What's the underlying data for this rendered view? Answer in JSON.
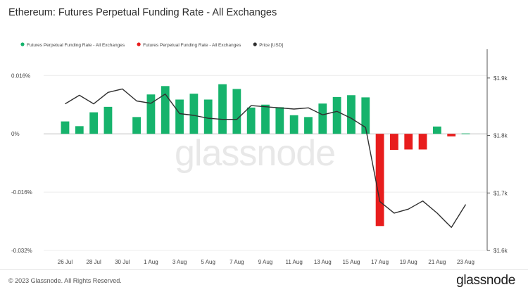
{
  "header": {
    "title": "Ethereum: Futures Perpetual Funding Rate - All Exchanges"
  },
  "watermark": "glassnode",
  "footer": {
    "copyright": "© 2023 Glassnode. All Rights Reserved.",
    "brand": "glassnode"
  },
  "colors": {
    "positive": "#16b36c",
    "negative": "#e81d1d",
    "price": "#2f2f2f",
    "grid": "#ececec"
  },
  "chart_data": {
    "type": "bar",
    "title": "Ethereum: Futures Perpetual Funding Rate - All Exchanges",
    "legend": [
      {
        "label": "Futures Perpetual Funding Rate - All Exchanges",
        "color": "#16b36c"
      },
      {
        "label": "Futures Perpetual Funding Rate - All Exchanges",
        "color": "#e81d1d"
      },
      {
        "label": "Price [USD]",
        "color": "#2f2f2f"
      }
    ],
    "legend_placement": "top-left",
    "x_dates": [
      "25 Jul",
      "26 Jul",
      "27 Jul",
      "28 Jul",
      "29 Jul",
      "30 Jul",
      "31 Jul",
      "1 Aug",
      "2 Aug",
      "3 Aug",
      "4 Aug",
      "5 Aug",
      "6 Aug",
      "7 Aug",
      "8 Aug",
      "9 Aug",
      "10 Aug",
      "11 Aug",
      "12 Aug",
      "13 Aug",
      "14 Aug",
      "15 Aug",
      "16 Aug",
      "17 Aug",
      "18 Aug",
      "19 Aug",
      "20 Aug",
      "21 Aug",
      "22 Aug",
      "23 Aug",
      "24 Aug"
    ],
    "x_tick_labels": [
      "26 Jul",
      "28 Jul",
      "30 Jul",
      "1 Aug",
      "3 Aug",
      "5 Aug",
      "7 Aug",
      "9 Aug",
      "11 Aug",
      "13 Aug",
      "15 Aug",
      "17 Aug",
      "19 Aug",
      "21 Aug",
      "23 Aug"
    ],
    "series": [
      {
        "axis": "left",
        "kind": "bar",
        "values": [
          null,
          0.0034,
          0.0021,
          0.0059,
          0.0074,
          null,
          0.0046,
          0.0108,
          0.0131,
          0.0094,
          0.011,
          0.0094,
          0.0136,
          0.0123,
          0.0072,
          0.008,
          0.0073,
          0.0051,
          0.0046,
          0.0083,
          0.0101,
          0.0106,
          0.01,
          -0.0253,
          -0.0044,
          -0.0043,
          -0.0043,
          0.002,
          -0.0007,
          0.0001,
          null
        ]
      },
      {
        "name": "Price [USD]",
        "axis": "right",
        "kind": "line",
        "values": [
          null,
          1855,
          1870,
          1855,
          1875,
          1881,
          1860,
          1856,
          1872,
          1838,
          1835,
          1830,
          1828,
          1828,
          1852,
          1850,
          1848,
          1846,
          1848,
          1836,
          1842,
          1830,
          1814,
          1685,
          1665,
          1672,
          1686,
          1665,
          1640,
          1680,
          null
        ]
      }
    ],
    "y_left": {
      "ticks": [
        0.016,
        0,
        -0.016,
        -0.032
      ],
      "tick_labels": [
        "0.016%",
        "0%",
        "-0.016%",
        "-0.032%"
      ],
      "ylim": [
        -0.032,
        0.0232
      ]
    },
    "y_right": {
      "ticks": [
        1900,
        1800,
        1700,
        1600
      ],
      "tick_labels": [
        "$1.9k",
        "$1.8k",
        "$1.7k",
        "$1.6k"
      ],
      "ylim": [
        1600,
        1950
      ]
    },
    "grid": true
  }
}
